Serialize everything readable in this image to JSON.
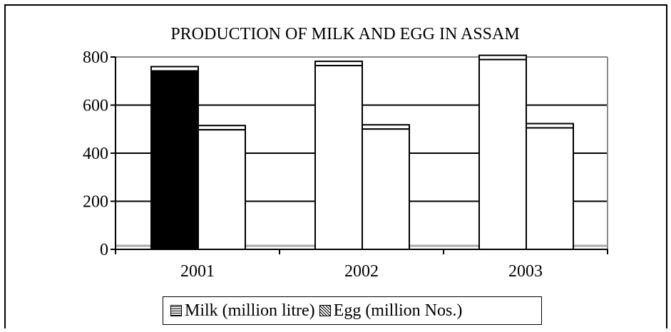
{
  "chart_data": {
    "type": "bar",
    "title": "PRODUCTION OF MILK AND EGG  IN ASSAM",
    "categories": [
      "2001",
      "2002",
      "2003"
    ],
    "series": [
      {
        "name": "Milk (million litre)",
        "values": [
          760,
          782,
          807
        ]
      },
      {
        "name": "Egg (million Nos.)",
        "values": [
          515,
          518,
          523
        ]
      }
    ],
    "y_ticks": [
      "0",
      "200",
      "400",
      "600",
      "800"
    ],
    "ylim": [
      0,
      800
    ],
    "grid": true,
    "legend_position": "bottom",
    "colors": {
      "milk_2001": "#000000",
      "milk": "#ffffff",
      "egg": "#ffffff",
      "gridline": "#000000",
      "baseline": "#aaaaaa"
    }
  }
}
